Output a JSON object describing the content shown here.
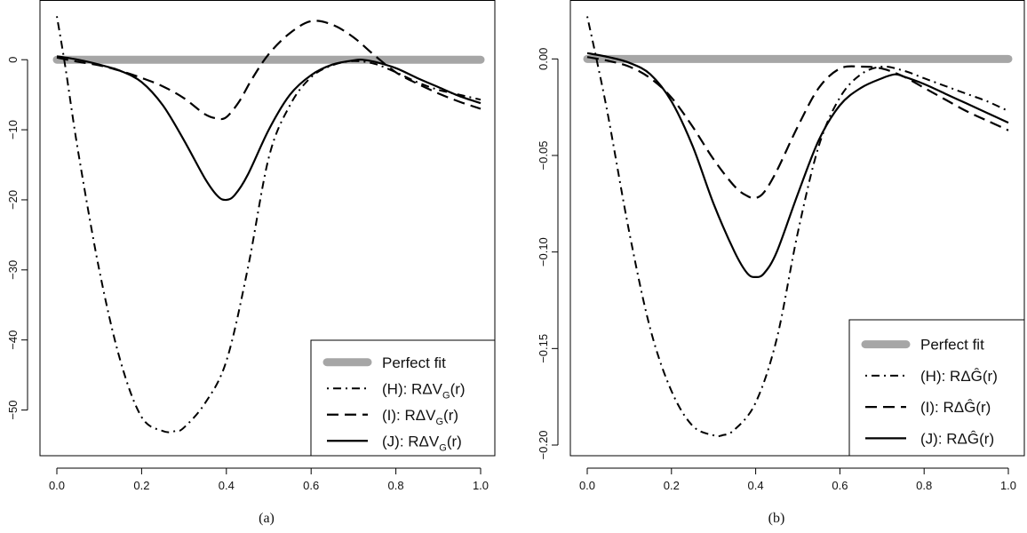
{
  "chart_data": [
    {
      "panel_id": "a",
      "caption": "(a)",
      "type": "line",
      "xlim": [
        0,
        1
      ],
      "ylim": [
        -55,
        7
      ],
      "xticks": [
        0.0,
        0.2,
        0.4,
        0.6,
        0.8,
        1.0
      ],
      "xtick_labels": [
        "0.0",
        "0.2",
        "0.4",
        "0.6",
        "0.8",
        "1.0"
      ],
      "yticks": [
        0,
        -10,
        -20,
        -30,
        -40,
        -50
      ],
      "ytick_labels": [
        "0",
        "−10",
        "−20",
        "−30",
        "−40",
        "−50"
      ],
      "grid": false,
      "legend_position": "bottom-right",
      "series": [
        {
          "name": "Perfect fit",
          "style": "thick-gray",
          "color": "#a6a6a6",
          "x": [
            0,
            1
          ],
          "y": [
            0,
            0
          ]
        },
        {
          "name": "(H): RΔV",
          "name_sub": "G",
          "name_suffix": "(r)",
          "style": "dotdash",
          "color": "#000000",
          "x": [
            0.0,
            0.02,
            0.05,
            0.1,
            0.15,
            0.2,
            0.25,
            0.28,
            0.3,
            0.35,
            0.4,
            0.45,
            0.5,
            0.55,
            0.6,
            0.65,
            0.7,
            0.75,
            0.8,
            0.85,
            0.9,
            0.95,
            1.0
          ],
          "y": [
            6.2,
            -1,
            -13,
            -30,
            -43,
            -51,
            -53,
            -53,
            -52.5,
            -49,
            -43,
            -30,
            -14,
            -6.5,
            -2.5,
            -0.8,
            -0.2,
            -0.6,
            -1.8,
            -3.2,
            -4.3,
            -5.0,
            -5.7
          ]
        },
        {
          "name": "(I): RΔV",
          "name_sub": "G",
          "name_suffix": "(r)",
          "style": "dashed",
          "color": "#000000",
          "x": [
            0.0,
            0.05,
            0.1,
            0.15,
            0.2,
            0.25,
            0.3,
            0.35,
            0.38,
            0.4,
            0.43,
            0.46,
            0.5,
            0.55,
            0.6,
            0.65,
            0.7,
            0.75,
            0.8,
            0.85,
            0.9,
            0.95,
            1.0
          ],
          "y": [
            0.3,
            -0.3,
            -0.8,
            -1.6,
            -2.6,
            -3.8,
            -5.5,
            -7.8,
            -8.4,
            -8.2,
            -6,
            -2.8,
            0.8,
            3.8,
            5.5,
            5.0,
            3.2,
            0.6,
            -1.8,
            -3.4,
            -4.8,
            -6.0,
            -7.0
          ]
        },
        {
          "name": "(J): RΔV",
          "name_sub": "G",
          "name_suffix": "(r)",
          "style": "solid",
          "color": "#000000",
          "x": [
            0.0,
            0.05,
            0.1,
            0.15,
            0.2,
            0.25,
            0.3,
            0.35,
            0.38,
            0.4,
            0.42,
            0.45,
            0.5,
            0.55,
            0.6,
            0.65,
            0.7,
            0.72,
            0.75,
            0.8,
            0.85,
            0.9,
            0.95,
            1.0
          ],
          "y": [
            0.5,
            0.0,
            -0.7,
            -1.6,
            -3.2,
            -6.5,
            -11.5,
            -17,
            -19.5,
            -20.0,
            -19.3,
            -16.5,
            -10,
            -5,
            -2.2,
            -0.7,
            -0.1,
            0.0,
            -0.3,
            -1.2,
            -2.6,
            -3.9,
            -5.2,
            -6.2
          ]
        }
      ]
    },
    {
      "panel_id": "b",
      "caption": "(b)",
      "type": "line",
      "xlim": [
        0,
        1
      ],
      "ylim": [
        -0.2,
        0.025
      ],
      "xticks": [
        0.0,
        0.2,
        0.4,
        0.6,
        0.8,
        1.0
      ],
      "xtick_labels": [
        "0.0",
        "0.2",
        "0.4",
        "0.6",
        "0.8",
        "1.0"
      ],
      "yticks": [
        0.0,
        -0.05,
        -0.1,
        -0.15,
        -0.2
      ],
      "ytick_labels": [
        "0.00",
        "−0.05",
        "−0.10",
        "−0.15",
        "−0.20"
      ],
      "grid": false,
      "legend_position": "bottom-right",
      "series": [
        {
          "name": "Perfect fit",
          "style": "thick-gray",
          "color": "#a6a6a6",
          "x": [
            0,
            1
          ],
          "y": [
            0,
            0
          ]
        },
        {
          "name": "(H): RΔĜ(r)",
          "style": "dotdash",
          "color": "#000000",
          "x": [
            0.0,
            0.02,
            0.05,
            0.1,
            0.15,
            0.2,
            0.25,
            0.3,
            0.32,
            0.35,
            0.4,
            0.45,
            0.5,
            0.55,
            0.6,
            0.65,
            0.7,
            0.75,
            0.8,
            0.85,
            0.9,
            0.95,
            1.0
          ],
          "y": [
            0.022,
            0.002,
            -0.03,
            -0.09,
            -0.14,
            -0.172,
            -0.19,
            -0.195,
            -0.195,
            -0.192,
            -0.178,
            -0.145,
            -0.09,
            -0.045,
            -0.02,
            -0.008,
            -0.004,
            -0.006,
            -0.01,
            -0.014,
            -0.018,
            -0.022,
            -0.027
          ]
        },
        {
          "name": "(I): RΔĜ(r)",
          "style": "dashed",
          "color": "#000000",
          "x": [
            0.0,
            0.05,
            0.1,
            0.15,
            0.2,
            0.25,
            0.3,
            0.35,
            0.38,
            0.4,
            0.42,
            0.45,
            0.5,
            0.55,
            0.6,
            0.65,
            0.7,
            0.75,
            0.8,
            0.85,
            0.9,
            0.95,
            1.0
          ],
          "y": [
            0.001,
            -0.001,
            -0.004,
            -0.01,
            -0.02,
            -0.035,
            -0.052,
            -0.066,
            -0.071,
            -0.072,
            -0.069,
            -0.058,
            -0.035,
            -0.015,
            -0.005,
            -0.004,
            -0.005,
            -0.009,
            -0.015,
            -0.021,
            -0.027,
            -0.032,
            -0.037
          ]
        },
        {
          "name": "(J): RΔĜ(r)",
          "style": "solid",
          "color": "#000000",
          "x": [
            0.0,
            0.05,
            0.1,
            0.15,
            0.2,
            0.25,
            0.3,
            0.35,
            0.38,
            0.4,
            0.42,
            0.45,
            0.5,
            0.55,
            0.6,
            0.65,
            0.7,
            0.73,
            0.75,
            0.8,
            0.85,
            0.9,
            0.95,
            1.0
          ],
          "y": [
            0.003,
            0.001,
            -0.002,
            -0.008,
            -0.022,
            -0.045,
            -0.075,
            -0.1,
            -0.111,
            -0.113,
            -0.111,
            -0.1,
            -0.07,
            -0.042,
            -0.024,
            -0.015,
            -0.01,
            -0.008,
            -0.009,
            -0.013,
            -0.018,
            -0.023,
            -0.028,
            -0.033
          ]
        }
      ]
    }
  ]
}
